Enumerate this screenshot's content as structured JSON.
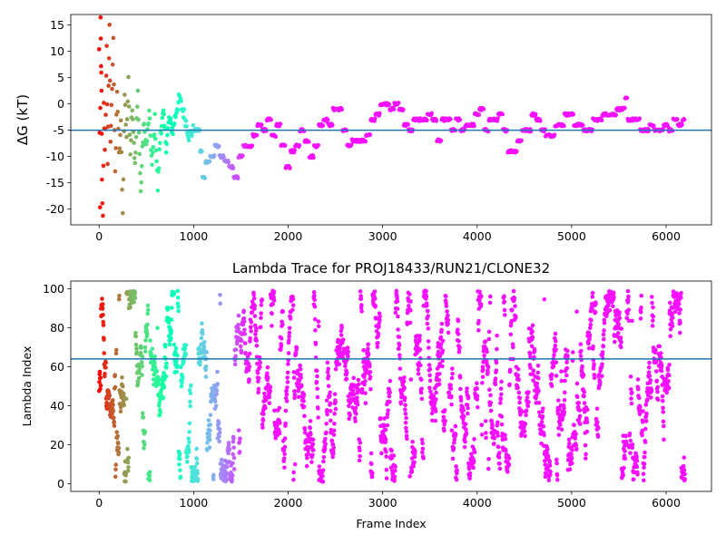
{
  "chart_data": [
    {
      "type": "scatter",
      "title": "",
      "xlabel": "",
      "ylabel": "ΔG (kT)",
      "xlim": [
        -300,
        6480
      ],
      "ylim": [
        -23,
        17
      ],
      "xticks": [
        0,
        1000,
        2000,
        3000,
        4000,
        5000,
        6000
      ],
      "yticks": [
        -20,
        -15,
        -10,
        -5,
        0,
        5,
        10,
        15
      ],
      "hline": -5,
      "hline_color": "#1f77b4",
      "color_scale": "rainbow (red at start, violet at end)",
      "trace": [
        [
          0,
          10
        ],
        [
          10,
          -20
        ],
        [
          15,
          16
        ],
        [
          20,
          8
        ],
        [
          25,
          2
        ],
        [
          30,
          -15
        ],
        [
          40,
          -22
        ],
        [
          50,
          0
        ],
        [
          60,
          -8
        ],
        [
          70,
          -3
        ],
        [
          80,
          12
        ],
        [
          90,
          -12
        ],
        [
          100,
          4
        ],
        [
          110,
          14
        ],
        [
          120,
          -7
        ],
        [
          130,
          -1
        ],
        [
          150,
          13
        ],
        [
          170,
          -14
        ],
        [
          190,
          3
        ],
        [
          210,
          -10
        ],
        [
          230,
          -4
        ],
        [
          250,
          -21
        ],
        [
          270,
          2
        ],
        [
          290,
          -6
        ],
        [
          310,
          4
        ],
        [
          330,
          -9
        ],
        [
          350,
          0
        ],
        [
          380,
          -12
        ],
        [
          410,
          2
        ],
        [
          440,
          -17
        ],
        [
          470,
          -4
        ],
        [
          500,
          -8
        ],
        [
          530,
          -2
        ],
        [
          560,
          -12
        ],
        [
          590,
          -3
        ],
        [
          620,
          -16
        ],
        [
          650,
          -5
        ],
        [
          680,
          -2
        ],
        [
          710,
          -8
        ],
        [
          740,
          -3
        ],
        [
          780,
          -5
        ],
        [
          820,
          -1
        ],
        [
          850,
          1
        ],
        [
          880,
          -1
        ],
        [
          900,
          -2
        ],
        [
          950,
          -6
        ],
        [
          1000,
          -5
        ],
        [
          1050,
          -5
        ],
        [
          1080,
          -9
        ],
        [
          1100,
          -14
        ],
        [
          1150,
          -11
        ],
        [
          1200,
          -10
        ],
        [
          1250,
          -8
        ],
        [
          1300,
          -10
        ],
        [
          1350,
          -11
        ],
        [
          1400,
          -12
        ],
        [
          1450,
          -14
        ],
        [
          1500,
          -10
        ],
        [
          1550,
          -8
        ],
        [
          1600,
          -8
        ],
        [
          1650,
          -6
        ],
        [
          1700,
          -4
        ],
        [
          1750,
          -5
        ],
        [
          1800,
          -3
        ],
        [
          1850,
          -6
        ],
        [
          1900,
          -4
        ],
        [
          1950,
          -8
        ],
        [
          2000,
          -12
        ],
        [
          2050,
          -9
        ],
        [
          2100,
          -8
        ],
        [
          2150,
          -5
        ],
        [
          2200,
          -7
        ],
        [
          2250,
          -10
        ],
        [
          2300,
          -8
        ],
        [
          2350,
          -4
        ],
        [
          2400,
          -3
        ],
        [
          2450,
          -4
        ],
        [
          2500,
          -1
        ],
        [
          2550,
          -1
        ],
        [
          2600,
          -5
        ],
        [
          2650,
          -8
        ],
        [
          2700,
          -7
        ],
        [
          2750,
          -7
        ],
        [
          2800,
          -7
        ],
        [
          2850,
          -6
        ],
        [
          2900,
          -3
        ],
        [
          2950,
          -2
        ],
        [
          3000,
          0
        ],
        [
          3050,
          0
        ],
        [
          3100,
          -1
        ],
        [
          3150,
          0
        ],
        [
          3200,
          -1
        ],
        [
          3250,
          -4
        ],
        [
          3300,
          -5
        ],
        [
          3350,
          -3
        ],
        [
          3400,
          -3
        ],
        [
          3450,
          -3
        ],
        [
          3500,
          -2
        ],
        [
          3550,
          -3
        ],
        [
          3600,
          -7
        ],
        [
          3650,
          -3
        ],
        [
          3700,
          -3
        ],
        [
          3750,
          -5
        ],
        [
          3800,
          -3
        ],
        [
          3850,
          -5
        ],
        [
          3900,
          -4
        ],
        [
          3950,
          -4
        ],
        [
          4000,
          -2
        ],
        [
          4050,
          -1
        ],
        [
          4100,
          -5
        ],
        [
          4150,
          -3
        ],
        [
          4200,
          -3
        ],
        [
          4250,
          -2
        ],
        [
          4300,
          -5
        ],
        [
          4350,
          -9
        ],
        [
          4400,
          -9
        ],
        [
          4450,
          -7
        ],
        [
          4500,
          -5
        ],
        [
          4550,
          -5
        ],
        [
          4600,
          -2
        ],
        [
          4650,
          -3
        ],
        [
          4700,
          -5
        ],
        [
          4750,
          -6
        ],
        [
          4800,
          -6
        ],
        [
          4850,
          -4
        ],
        [
          4900,
          -4
        ],
        [
          4950,
          -2
        ],
        [
          5000,
          -2
        ],
        [
          5050,
          -4
        ],
        [
          5100,
          -4
        ],
        [
          5150,
          -5
        ],
        [
          5200,
          -5
        ],
        [
          5250,
          -3
        ],
        [
          5300,
          -3
        ],
        [
          5350,
          -2
        ],
        [
          5400,
          -2
        ],
        [
          5450,
          -2
        ],
        [
          5500,
          -1
        ],
        [
          5550,
          -1
        ],
        [
          5580,
          1
        ],
        [
          5600,
          -3
        ],
        [
          5650,
          -3
        ],
        [
          5700,
          -3
        ],
        [
          5750,
          -5
        ],
        [
          5800,
          -5
        ],
        [
          5850,
          -4
        ],
        [
          5900,
          -5
        ],
        [
          5950,
          -5
        ],
        [
          6000,
          -4
        ],
        [
          6050,
          -5
        ],
        [
          6100,
          -3
        ],
        [
          6150,
          -4
        ],
        [
          6200,
          -3
        ]
      ]
    },
    {
      "type": "scatter",
      "title": "Lambda Trace for PROJ18433/RUN21/CLONE32",
      "xlabel": "Frame Index",
      "ylabel": "Lambda Index",
      "xlim": [
        -300,
        6480
      ],
      "ylim": [
        -4,
        104
      ],
      "xticks": [
        0,
        1000,
        2000,
        3000,
        4000,
        5000,
        6000
      ],
      "yticks": [
        0,
        20,
        40,
        60,
        80,
        100
      ],
      "hline": 64,
      "hline_color": "#1f77b4",
      "x_range": [
        0,
        6200
      ],
      "lambda_range": [
        1,
        99
      ],
      "color_scale": "rainbow (red at start, violet at end)"
    }
  ]
}
